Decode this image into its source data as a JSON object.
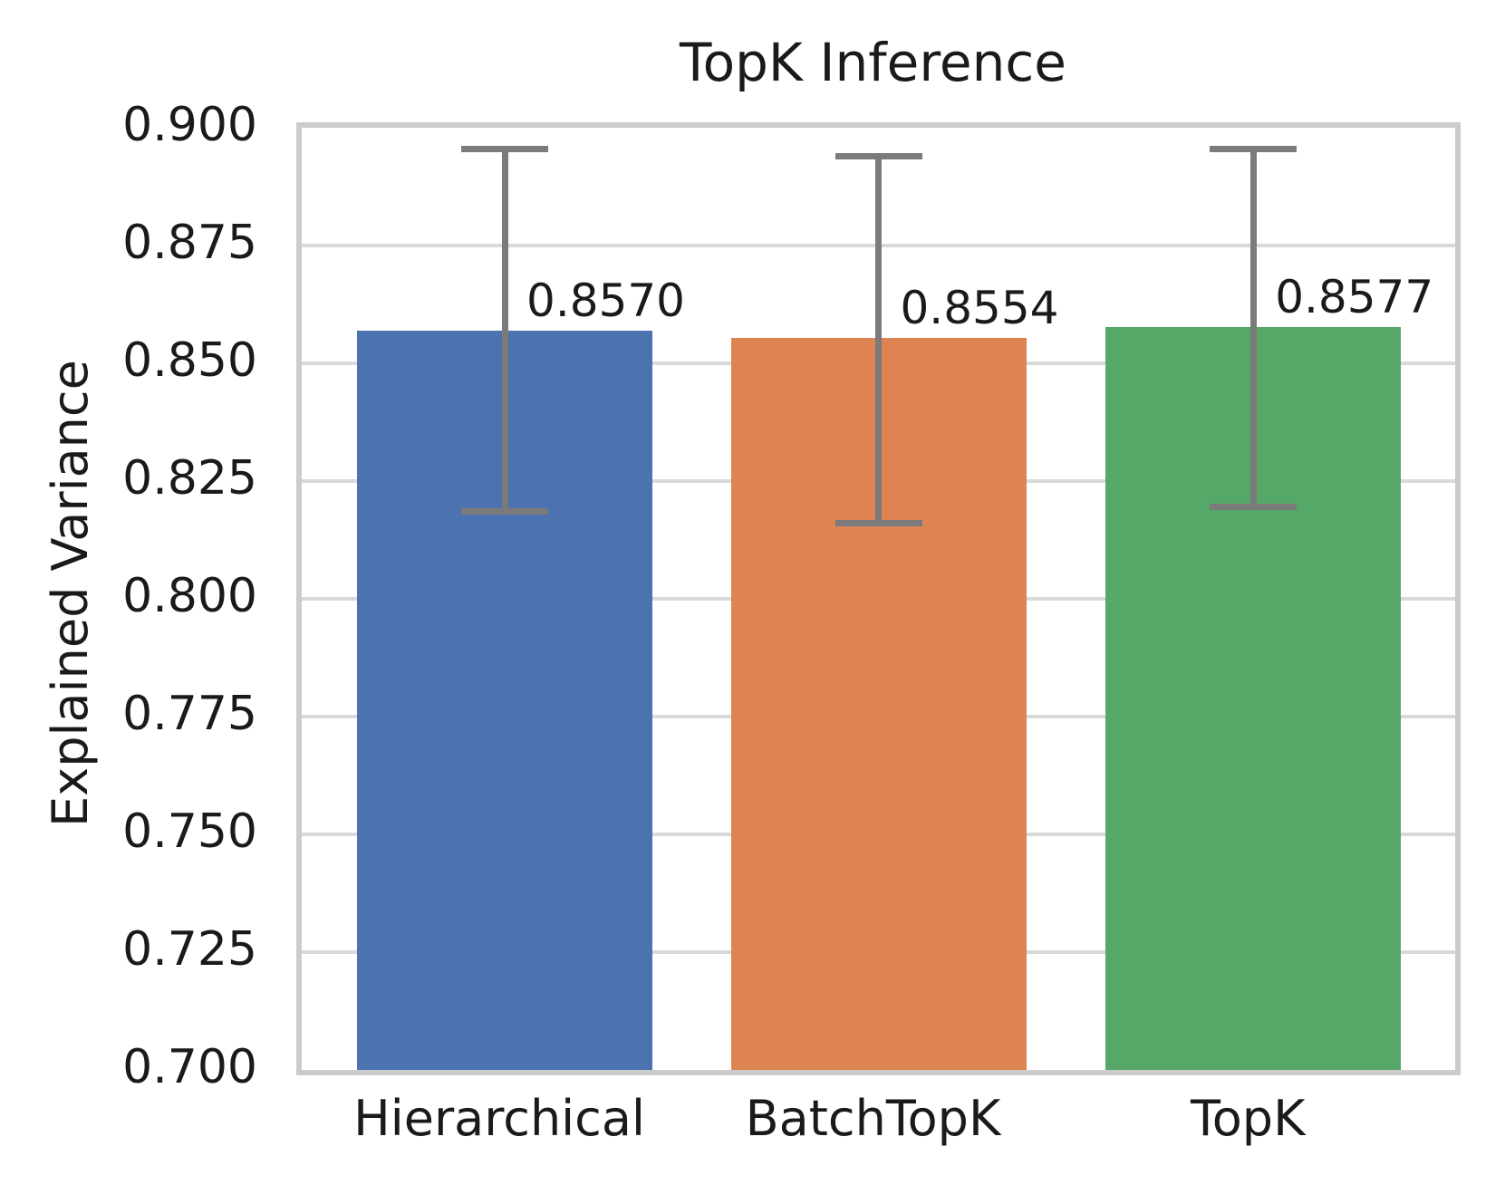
{
  "chart_data": {
    "type": "bar",
    "title": "TopK Inference",
    "xlabel": "",
    "ylabel": "Explained Variance",
    "categories": [
      "Hierarchical",
      "BatchTopK",
      "TopK"
    ],
    "values": [
      0.857,
      0.8554,
      0.8577
    ],
    "value_labels": [
      "0.8570",
      "0.8554",
      "0.8577"
    ],
    "error_low": [
      0.8185,
      0.816,
      0.8195
    ],
    "error_high": [
      0.8955,
      0.894,
      0.8955
    ],
    "bar_colors": [
      "#4C72B0",
      "#DD8452",
      "#55A868"
    ],
    "ylim": [
      0.7,
      0.9
    ],
    "ytick_labels": [
      "0.900",
      "0.875",
      "0.850",
      "0.825",
      "0.800",
      "0.775",
      "0.750",
      "0.725",
      "0.700"
    ],
    "ytick_values": [
      0.9,
      0.875,
      0.85,
      0.825,
      0.8,
      0.775,
      0.75,
      0.725,
      0.7
    ],
    "grid": "horizontal-major",
    "legend": "none",
    "error_bar_color": "#7b7b7b",
    "grid_color": "#d9d9d9",
    "spine_color": "#cccccc",
    "text_color": "#1a1a1a",
    "background_color": "#ffffff"
  }
}
